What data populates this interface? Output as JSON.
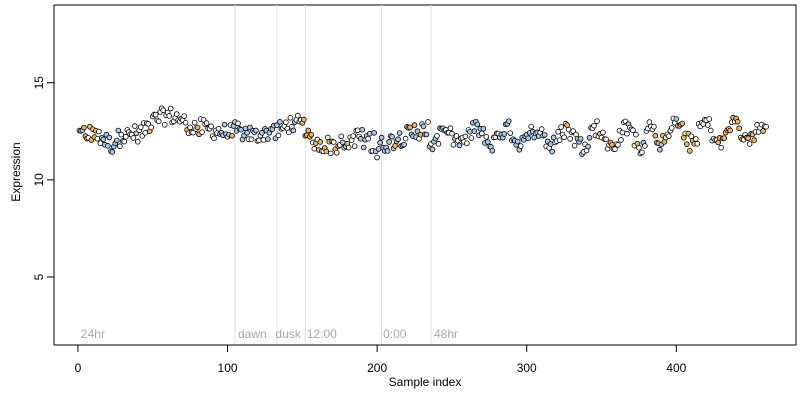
{
  "chart_data": {
    "type": "scatter",
    "xlabel": "Sample index",
    "ylabel": "Expression",
    "xlim": [
      -16,
      480
    ],
    "ylim": [
      1.5,
      19.0
    ],
    "x_ticks": [
      0,
      100,
      200,
      300,
      400
    ],
    "y_ticks": [
      5,
      10,
      15
    ],
    "n_points": 460,
    "phase_lines": [
      105,
      133,
      152,
      203,
      236
    ],
    "phase_labels": [
      {
        "x": 2,
        "text": "24hr"
      },
      {
        "x": 107,
        "text": "dawn"
      },
      {
        "x": 132,
        "text": "dusk"
      },
      {
        "x": 153,
        "text": "12:00"
      },
      {
        "x": 204,
        "text": "0:00"
      },
      {
        "x": 238,
        "text": "48hr"
      }
    ],
    "colors": {
      "blue": "#a8c8ec",
      "orange": "#f5b460",
      "white": "#ffffff",
      "grid": "#dddddd",
      "label": "#a8a8a8"
    },
    "blue_ranges": [
      [
        15,
        30
      ],
      [
        95,
        135
      ],
      [
        188,
        245
      ],
      [
        262,
        318
      ],
      [
        333,
        345
      ]
    ],
    "orange_ranges": [
      [
        3,
        12
      ],
      [
        150,
        175
      ],
      [
        205,
        232
      ],
      [
        385,
        392
      ],
      [
        402,
        412
      ],
      [
        428,
        452
      ]
    ]
  }
}
